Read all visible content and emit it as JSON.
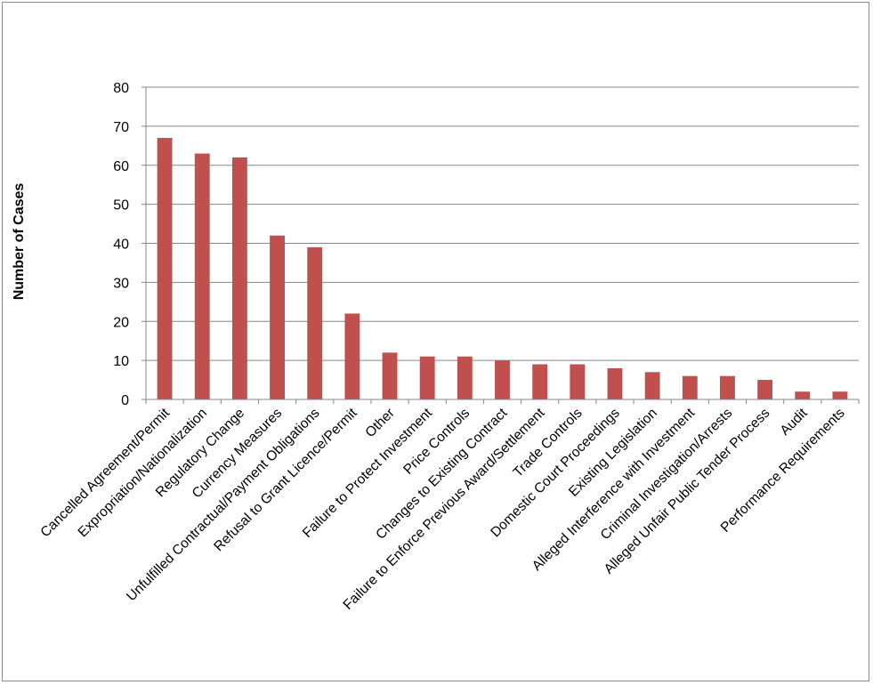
{
  "chart_data": {
    "type": "bar",
    "title": "",
    "xlabel": "",
    "ylabel": "Number of Cases",
    "ylim": [
      0,
      80
    ],
    "yticks": [
      0,
      10,
      20,
      30,
      40,
      50,
      60,
      70,
      80
    ],
    "grid": true,
    "legend": "none",
    "bar_color": "#c0504d",
    "categories": [
      "Cancelled Agreement/Permit",
      "Expropriation/Nationalization",
      "Regulatory Change",
      "Currency Measures",
      "Unfulfilled Contractual/Payment Obligations",
      "Refusal to Grant Licence/Permit",
      "Other",
      "Failure to Protect Investment",
      "Price Controls",
      "Changes to Existing Contract",
      "Failure to Enforce Previous Award/Settlement",
      "Trade Controls",
      "Domestic Court Proceedings",
      "Existing Legislation",
      "Alleged Interference with Investment",
      "Criminal Investigation/Arrests",
      "Alleged Unfair Public Tender Process",
      "Audit",
      "Performance Requirements"
    ],
    "values": [
      67,
      63,
      62,
      42,
      39,
      22,
      12,
      11,
      11,
      10,
      9,
      9,
      8,
      7,
      6,
      6,
      5,
      2,
      2
    ]
  }
}
